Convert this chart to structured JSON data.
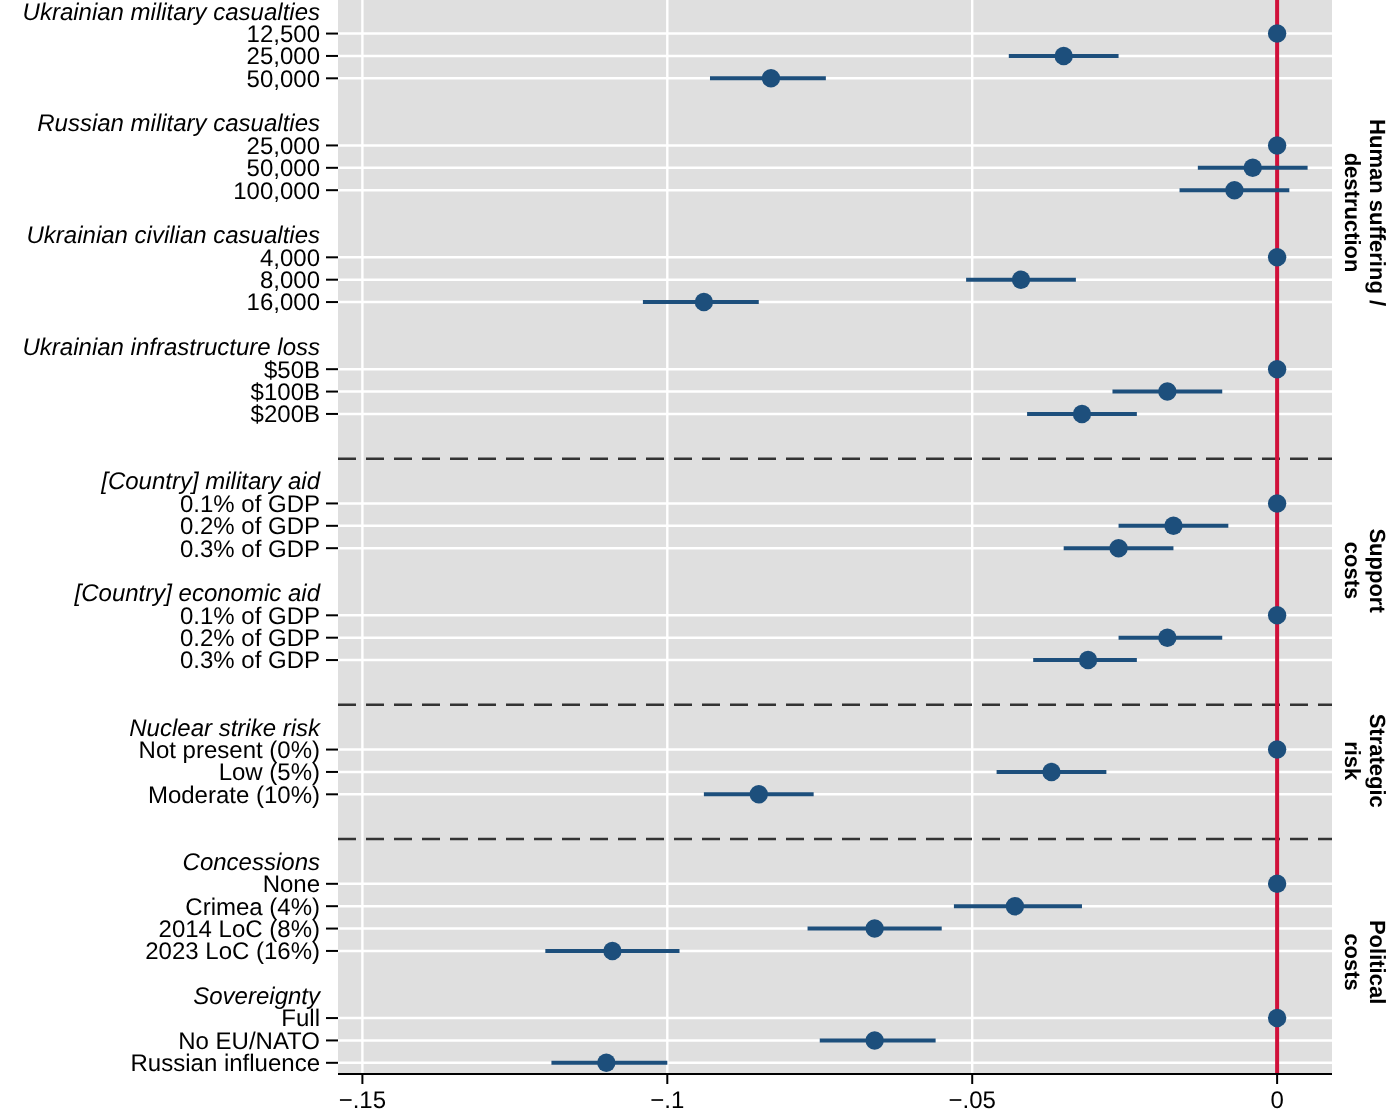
{
  "chart_data": {
    "type": "scatter",
    "orientation": "horizontal",
    "marker": "circle",
    "grid": true,
    "categories": [
      "Ukrainian military casualties",
      "12,500",
      "25,000",
      "50,000",
      null,
      "Russian military casualties",
      "25,000",
      "50,000",
      "100,000",
      null,
      "Ukrainian civilian casualties",
      "4,000",
      "8,000",
      "16,000",
      null,
      "Ukrainian infrastructure loss",
      "$50B",
      "$100B",
      "$200B",
      null,
      null,
      "[Country] military aid",
      "0.1% of GDP",
      "0.2% of GDP",
      "0.3% of GDP",
      null,
      "[Country] economic aid",
      "0.1% of GDP",
      "0.2% of GDP",
      "0.3% of GDP",
      null,
      null,
      "Nuclear strike risk",
      "Not present (0%)",
      "Low (5%)",
      "Moderate (10%)",
      null,
      null,
      "Concessions",
      "None",
      "Crimea (4%)",
      "2014 LoC (8%)",
      "2023 LoC (16%)",
      null,
      "Sovereignty",
      "Full",
      "No EU/NATO",
      "Russian influence"
    ],
    "series": [
      {
        "color": "#1d4f7c",
        "values": [
          null,
          0,
          -0.035,
          -0.083,
          null,
          null,
          0,
          -0.004,
          -0.007,
          null,
          null,
          0,
          -0.042,
          -0.094,
          null,
          null,
          0,
          -0.018,
          -0.032,
          null,
          null,
          null,
          0,
          -0.017,
          -0.026,
          null,
          null,
          0,
          -0.018,
          -0.031,
          null,
          null,
          null,
          0,
          -0.037,
          -0.085,
          null,
          null,
          null,
          0,
          -0.043,
          -0.066,
          -0.109,
          null,
          null,
          0,
          -0.066,
          -0.11
        ],
        "errors": [
          null,
          null,
          [
            -0.044,
            -0.026
          ],
          [
            -0.093,
            -0.074
          ],
          null,
          null,
          null,
          [
            -0.013,
            0.005
          ],
          [
            -0.016,
            0.002
          ],
          null,
          null,
          null,
          [
            -0.051,
            -0.033
          ],
          [
            -0.104,
            -0.085
          ],
          null,
          null,
          null,
          [
            -0.027,
            -0.009
          ],
          [
            -0.041,
            -0.023
          ],
          null,
          null,
          null,
          null,
          [
            -0.026,
            -0.008
          ],
          [
            -0.035,
            -0.017
          ],
          null,
          null,
          null,
          [
            -0.026,
            -0.009
          ],
          [
            -0.04,
            -0.023
          ],
          null,
          null,
          null,
          null,
          [
            -0.046,
            -0.028
          ],
          [
            -0.094,
            -0.076
          ],
          null,
          null,
          null,
          null,
          [
            -0.053,
            -0.032
          ],
          [
            -0.077,
            -0.055
          ],
          [
            -0.12,
            -0.098
          ],
          null,
          null,
          null,
          [
            -0.075,
            -0.056
          ],
          [
            -0.119,
            -0.1
          ]
        ]
      }
    ],
    "xlim": [
      -0.154,
      0.009
    ],
    "xticks": [
      {
        "value": -0.15,
        "label": "−.15"
      },
      {
        "value": -0.1,
        "label": "−.1"
      },
      {
        "value": -0.05,
        "label": "−.05"
      },
      0
    ],
    "ref_lines": [
      {
        "axis": "x",
        "value": 0,
        "color": "#d0103a"
      }
    ],
    "annotations": [
      "Human suffering /\ndestruction",
      "Support\ncosts",
      "Strategic\nrisk",
      "Political\ncosts"
    ]
  }
}
